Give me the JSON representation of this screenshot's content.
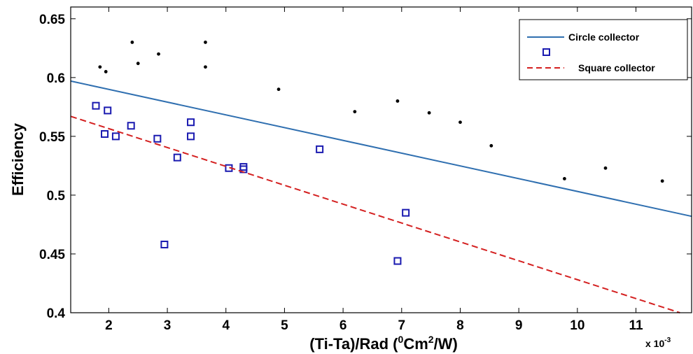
{
  "chart_data": {
    "type": "scatter",
    "xlabel": {
      "main": "(Ti-Ta)/Rad (",
      "sup1": "0",
      "mid": "Cm",
      "sup2": "2",
      "end": "/W)"
    },
    "ylabel": "Efficiency",
    "x_multiplier": {
      "base": "x 10",
      "exp": "-3"
    },
    "xlim": [
      1.35,
      11.95
    ],
    "ylim": [
      0.4,
      0.66
    ],
    "x_ticks": [
      2,
      3,
      4,
      5,
      6,
      7,
      8,
      9,
      10,
      11
    ],
    "x_tick_labels": [
      "2",
      "3",
      "4",
      "5",
      "6",
      "7",
      "8",
      "9",
      "10",
      "11"
    ],
    "y_ticks": [
      0.4,
      0.45,
      0.5,
      0.55,
      0.6,
      0.65
    ],
    "y_tick_labels": [
      "0.4",
      "0.45",
      "0.5",
      "0.55",
      "0.6",
      "0.65"
    ],
    "grid": false,
    "legend_position": "top-right",
    "legend": [
      {
        "label": "Circle collector",
        "kind": "line",
        "color": "#2f6fb0",
        "dash": "solid"
      },
      {
        "label": "",
        "kind": "marker",
        "marker": "square",
        "color": "#1a1ab0"
      },
      {
        "label": "Square collector",
        "kind": "line",
        "color": "#d42020",
        "dash": "dashed"
      }
    ],
    "series": [
      {
        "kind": "points",
        "marker": "dot",
        "color": "#000000",
        "x": [
          1.85,
          1.95,
          2.4,
          2.5,
          2.85,
          3.65,
          3.65,
          4.9,
          6.2,
          6.93,
          7.47,
          8.0,
          8.53,
          9.78,
          10.48,
          11.45
        ],
        "y": [
          0.609,
          0.605,
          0.63,
          0.612,
          0.62,
          0.63,
          0.609,
          0.59,
          0.571,
          0.58,
          0.57,
          0.562,
          0.542,
          0.514,
          0.523,
          0.512
        ]
      },
      {
        "kind": "points",
        "marker": "square",
        "color": "#1a1ab0",
        "x": [
          1.78,
          1.98,
          1.93,
          2.12,
          2.38,
          2.83,
          2.95,
          3.17,
          3.4,
          3.4,
          4.05,
          4.3,
          4.3,
          5.6,
          6.93,
          7.07
        ],
        "y": [
          0.576,
          0.572,
          0.552,
          0.55,
          0.559,
          0.548,
          0.458,
          0.532,
          0.562,
          0.55,
          0.523,
          0.524,
          0.522,
          0.539,
          0.444,
          0.485
        ]
      },
      {
        "kind": "line",
        "color": "#2f6fb0",
        "dash": "solid",
        "x": [
          1.35,
          11.95
        ],
        "y": [
          0.597,
          0.482
        ]
      },
      {
        "kind": "line",
        "color": "#d42020",
        "dash": "dashed",
        "x": [
          1.35,
          11.75
        ],
        "y": [
          0.567,
          0.4
        ]
      }
    ]
  }
}
